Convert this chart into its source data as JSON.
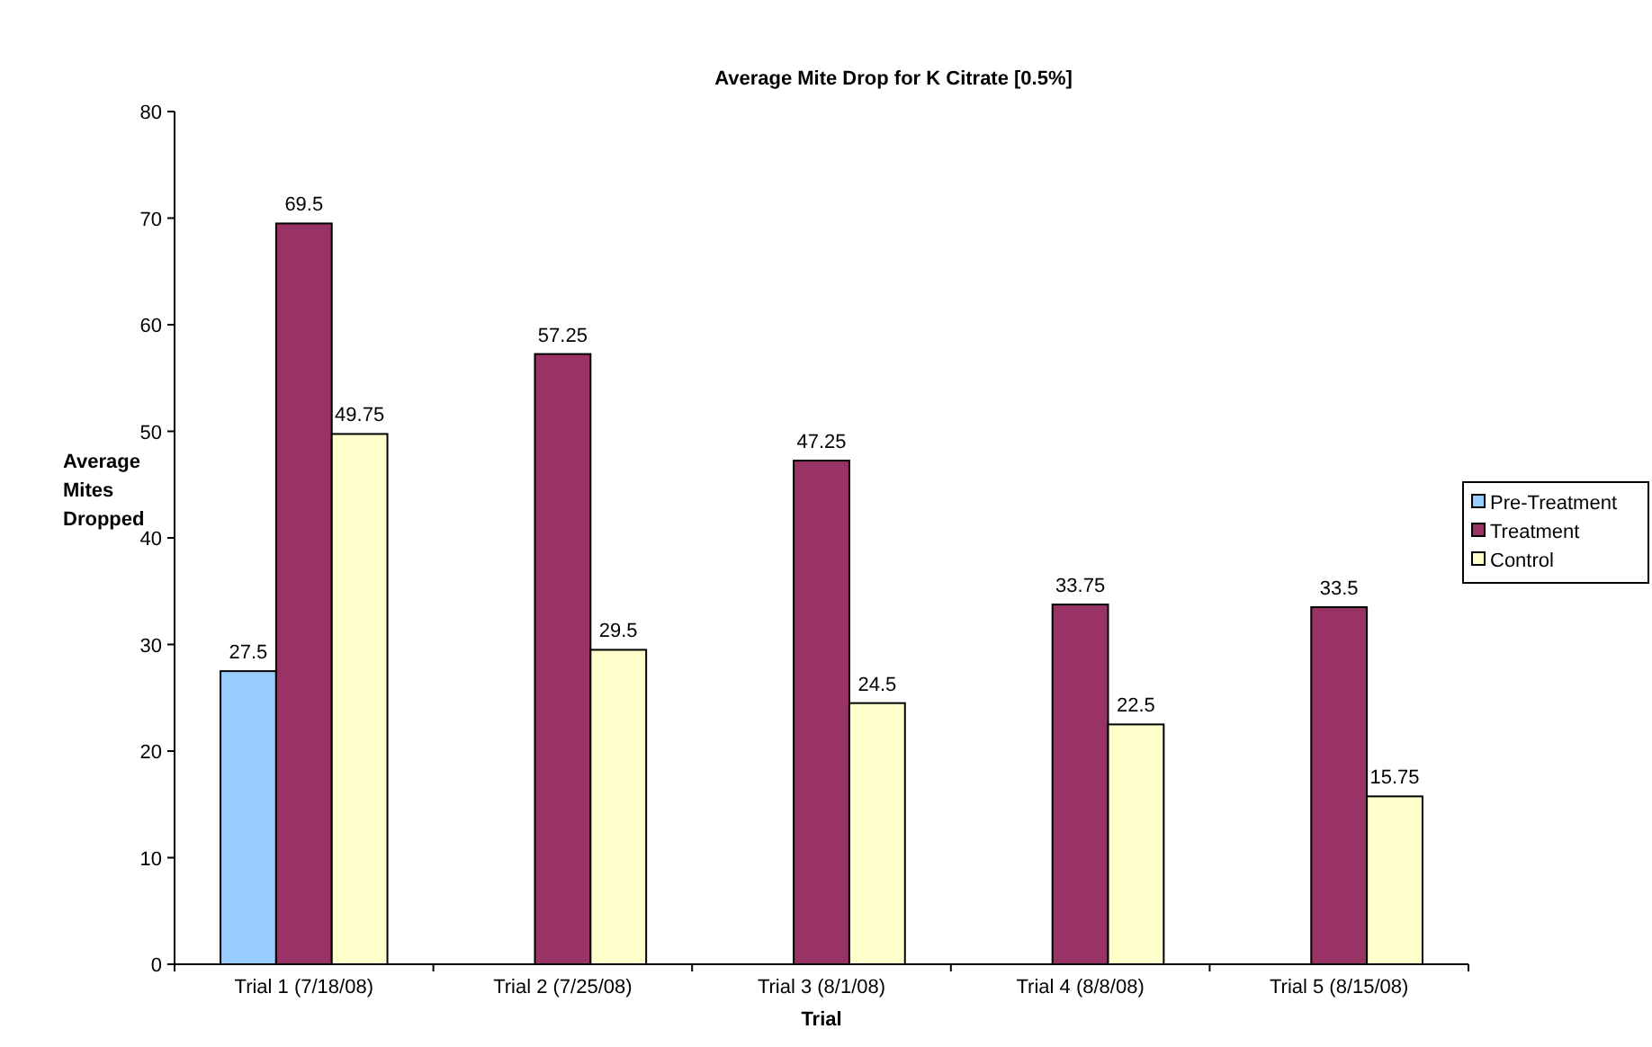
{
  "chart_data": {
    "type": "bar",
    "title": "Average Mite Drop for K Citrate [0.5%]",
    "xlabel": "Trial",
    "ylabel": "Average Mites Dropped",
    "categories": [
      "Trial 1 (7/18/08)",
      "Trial 2 (7/25/08)",
      "Trial 3 (8/1/08)",
      "Trial 4 (8/8/08)",
      "Trial 5 (8/15/08)"
    ],
    "series": [
      {
        "name": "Pre-Treatment",
        "color": "#99ccff",
        "values": [
          27.5,
          null,
          null,
          null,
          null
        ]
      },
      {
        "name": "Treatment",
        "color": "#993366",
        "values": [
          69.5,
          57.25,
          47.25,
          33.75,
          33.5
        ]
      },
      {
        "name": "Control",
        "color": "#ffffcc",
        "values": [
          49.75,
          29.5,
          24.5,
          22.5,
          15.75
        ]
      }
    ],
    "ylim": [
      0,
      80
    ],
    "yticks": [
      0,
      10,
      20,
      30,
      40,
      50,
      60,
      70,
      80
    ],
    "grid": false,
    "legend": "right",
    "data_labels": true
  }
}
